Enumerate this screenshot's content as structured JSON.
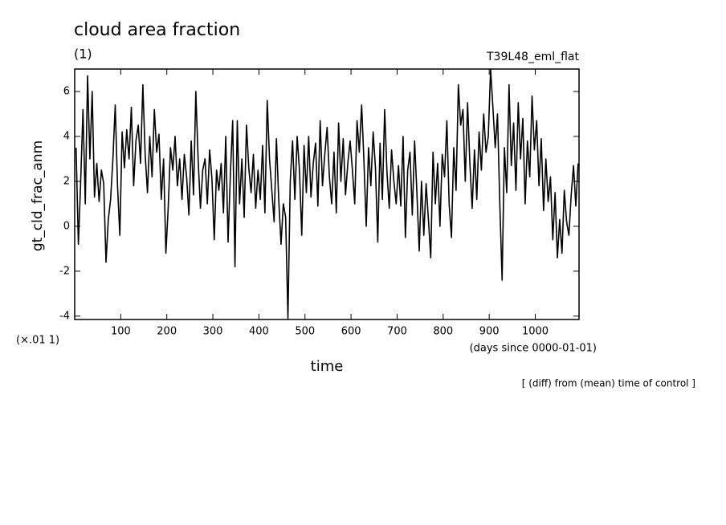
{
  "chart_data": {
    "type": "line",
    "title": "cloud area fraction",
    "subtitle": "(1)",
    "experiment": "T39L48_eml_flat",
    "y_label": "gt_cld_frac_anm",
    "y_unit": "(×.01 1)",
    "x_label": "time",
    "x_unit": "(days since 0000-01-01)",
    "note": "[ (diff) from (mean) time of control ]",
    "xlim": [
      0,
      1095
    ],
    "ylim": [
      -4.15,
      7
    ],
    "xticks": [
      100,
      200,
      300,
      400,
      500,
      600,
      700,
      800,
      900,
      1000
    ],
    "yticks": [
      -4,
      -2,
      0,
      2,
      4,
      6
    ],
    "x": [
      3,
      8,
      13,
      18,
      23,
      28,
      33,
      38,
      43,
      48,
      53,
      58,
      63,
      68,
      73,
      78,
      83,
      88,
      93,
      98,
      103,
      108,
      113,
      118,
      123,
      128,
      133,
      138,
      143,
      148,
      153,
      158,
      163,
      168,
      173,
      178,
      183,
      188,
      193,
      198,
      203,
      208,
      213,
      218,
      223,
      228,
      233,
      238,
      243,
      248,
      253,
      258,
      263,
      268,
      273,
      278,
      283,
      288,
      293,
      298,
      303,
      308,
      313,
      318,
      323,
      328,
      333,
      338,
      343,
      348,
      353,
      358,
      363,
      368,
      373,
      378,
      383,
      388,
      393,
      398,
      403,
      408,
      413,
      418,
      423,
      428,
      433,
      438,
      443,
      448,
      453,
      458,
      463,
      468,
      473,
      478,
      483,
      488,
      493,
      498,
      503,
      508,
      513,
      518,
      523,
      528,
      533,
      538,
      543,
      548,
      553,
      558,
      563,
      568,
      573,
      578,
      583,
      588,
      593,
      598,
      603,
      608,
      613,
      618,
      623,
      628,
      633,
      638,
      643,
      648,
      653,
      658,
      663,
      668,
      673,
      678,
      683,
      688,
      693,
      698,
      703,
      708,
      713,
      718,
      723,
      728,
      733,
      738,
      743,
      748,
      753,
      758,
      763,
      768,
      773,
      778,
      783,
      788,
      793,
      798,
      803,
      808,
      813,
      818,
      823,
      828,
      833,
      838,
      843,
      848,
      853,
      858,
      863,
      868,
      873,
      878,
      883,
      888,
      893,
      898,
      903,
      908,
      913,
      918,
      923,
      928,
      933,
      938,
      943,
      948,
      953,
      958,
      963,
      968,
      973,
      978,
      983,
      988,
      993,
      998,
      1003,
      1008,
      1013,
      1018,
      1023,
      1028,
      1033,
      1038,
      1043,
      1048,
      1053,
      1058,
      1063,
      1068,
      1073,
      1078,
      1083,
      1088,
      1093
    ],
    "series": [
      {
        "color": "#000000",
        "values": [
          3.5,
          -0.8,
          2.0,
          5.2,
          1.0,
          6.7,
          3.0,
          6.0,
          1.3,
          2.8,
          1.1,
          2.5,
          1.9,
          -1.6,
          0.3,
          1.2,
          3.0,
          5.4,
          1.8,
          -0.4,
          4.2,
          2.6,
          4.3,
          3.0,
          5.3,
          1.8,
          3.8,
          4.5,
          2.8,
          6.3,
          3.2,
          1.5,
          4.0,
          2.2,
          5.2,
          3.3,
          4.1,
          1.2,
          3.0,
          -1.2,
          0.8,
          3.5,
          2.5,
          4.0,
          1.8,
          3.0,
          1.2,
          3.2,
          2.2,
          0.5,
          3.8,
          1.4,
          6.0,
          3.0,
          0.8,
          2.5,
          3.0,
          1.0,
          3.4,
          2.1,
          -0.6,
          2.5,
          1.6,
          2.8,
          0.6,
          4.0,
          -0.7,
          2.3,
          4.7,
          -1.8,
          4.7,
          1.0,
          3.0,
          0.4,
          4.5,
          2.6,
          1.5,
          3.2,
          0.8,
          2.5,
          1.2,
          3.6,
          0.6,
          5.6,
          3.0,
          1.6,
          0.2,
          3.9,
          1.2,
          -0.8,
          1.0,
          0.4,
          -4.1,
          2.0,
          3.8,
          1.2,
          4.0,
          2.5,
          -0.4,
          3.6,
          1.5,
          4.0,
          1.3,
          2.8,
          3.7,
          0.9,
          4.7,
          1.8,
          3.2,
          4.4,
          2.2,
          1.0,
          3.3,
          0.6,
          4.6,
          2.0,
          3.9,
          1.4,
          2.8,
          3.8,
          2.5,
          1.0,
          4.7,
          3.3,
          5.4,
          2.9,
          0.0,
          3.5,
          1.8,
          4.2,
          2.6,
          -0.7,
          3.7,
          1.2,
          5.2,
          2.4,
          0.8,
          3.4,
          2.0,
          1.0,
          2.7,
          0.9,
          4.0,
          -0.5,
          2.5,
          3.3,
          0.5,
          3.8,
          1.5,
          -1.1,
          2.0,
          -0.4,
          1.9,
          0.3,
          -1.4,
          3.3,
          1.0,
          2.8,
          0.0,
          3.2,
          2.2,
          4.7,
          1.0,
          -0.5,
          3.5,
          1.6,
          6.3,
          4.5,
          5.2,
          2.0,
          5.5,
          2.8,
          0.8,
          3.4,
          1.2,
          4.2,
          2.5,
          5.0,
          3.3,
          4.0,
          7.0,
          5.3,
          3.5,
          5.0,
          1.0,
          -2.4,
          3.5,
          1.5,
          6.3,
          2.7,
          4.6,
          1.6,
          5.5,
          3.0,
          4.8,
          1.0,
          3.8,
          2.2,
          5.8,
          3.4,
          4.7,
          1.8,
          3.9,
          0.7,
          3.0,
          1.1,
          2.2,
          -0.6,
          1.5,
          -1.4,
          0.3,
          -1.2,
          1.6,
          0.2,
          -0.4,
          1.4,
          2.7,
          0.9,
          2.8
        ]
      }
    ]
  }
}
